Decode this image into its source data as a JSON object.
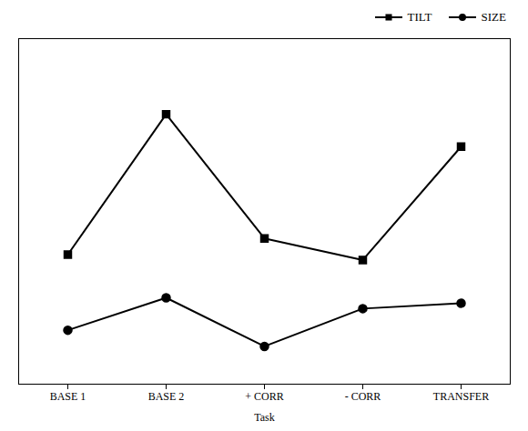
{
  "chart_data": {
    "type": "line",
    "xlabel": "Task",
    "categories": [
      "BASE 1",
      "BASE 2",
      "+ CORR",
      "- CORR",
      "TRANSFER"
    ],
    "series": [
      {
        "name": "TILT",
        "color": "#000000",
        "marker": "square",
        "values": [
          3.2,
          5.8,
          3.5,
          3.1,
          5.2
        ]
      },
      {
        "name": "SIZE",
        "color": "#000000",
        "marker": "circle",
        "values": [
          1.8,
          2.4,
          1.5,
          2.2,
          2.3
        ]
      }
    ],
    "ylim": [
      0.8,
      7.2
    ],
    "legend": "upper right",
    "tick_labels": "x",
    "grid": false
  }
}
